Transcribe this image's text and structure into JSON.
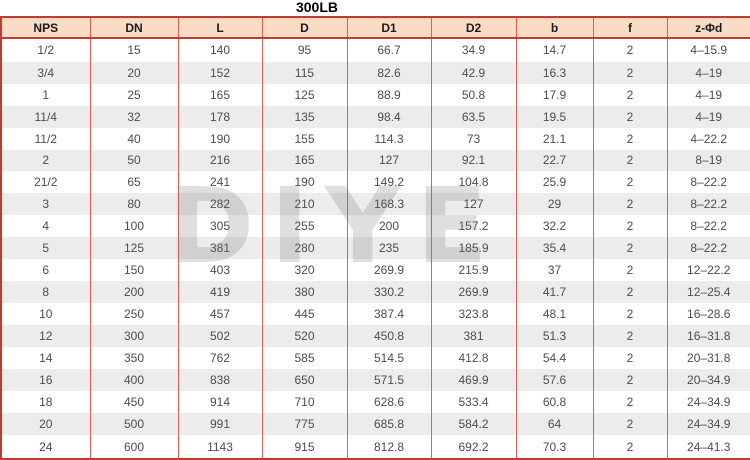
{
  "title": "300LB",
  "watermark": "DIYE",
  "colors": {
    "header_bg": "#f9dcc4",
    "border_red": "#dd6058",
    "border_dark_red": "#c23a30",
    "row_alt_bg": "#ececec",
    "cell_text": "#4d4d4d"
  },
  "table": {
    "columns": [
      "NPS",
      "DN",
      "L",
      "D",
      "D1",
      "D2",
      "b",
      "f",
      "z-Φd"
    ],
    "rows": [
      [
        "1/2",
        "15",
        "140",
        "95",
        "66.7",
        "34.9",
        "14.7",
        "2",
        "4–15.9"
      ],
      [
        "3/4",
        "20",
        "152",
        "115",
        "82.6",
        "42.9",
        "16.3",
        "2",
        "4–19"
      ],
      [
        "1",
        "25",
        "165",
        "125",
        "88.9",
        "50.8",
        "17.9",
        "2",
        "4–19"
      ],
      [
        "11/4",
        "32",
        "178",
        "135",
        "98.4",
        "63.5",
        "19.5",
        "2",
        "4–19"
      ],
      [
        "11/2",
        "40",
        "190",
        "155",
        "114.3",
        "73",
        "21.1",
        "2",
        "4–22.2"
      ],
      [
        "2",
        "50",
        "216",
        "165",
        "127",
        "92.1",
        "22.7",
        "2",
        "8–19"
      ],
      [
        "21/2",
        "65",
        "241",
        "190",
        "149.2",
        "104.8",
        "25.9",
        "2",
        "8–22.2"
      ],
      [
        "3",
        "80",
        "282",
        "210",
        "168.3",
        "127",
        "29",
        "2",
        "8–22.2"
      ],
      [
        "4",
        "100",
        "305",
        "255",
        "200",
        "157.2",
        "32.2",
        "2",
        "8–22.2"
      ],
      [
        "5",
        "125",
        "381",
        "280",
        "235",
        "185.9",
        "35.4",
        "2",
        "8–22.2"
      ],
      [
        "6",
        "150",
        "403",
        "320",
        "269.9",
        "215.9",
        "37",
        "2",
        "12–22.2"
      ],
      [
        "8",
        "200",
        "419",
        "380",
        "330.2",
        "269.9",
        "41.7",
        "2",
        "12–25.4"
      ],
      [
        "10",
        "250",
        "457",
        "445",
        "387.4",
        "323.8",
        "48.1",
        "2",
        "16–28.6"
      ],
      [
        "12",
        "300",
        "502",
        "520",
        "450.8",
        "381",
        "51.3",
        "2",
        "16–31.8"
      ],
      [
        "14",
        "350",
        "762",
        "585",
        "514.5",
        "412.8",
        "54.4",
        "2",
        "20–31.8"
      ],
      [
        "16",
        "400",
        "838",
        "650",
        "571.5",
        "469.9",
        "57.6",
        "2",
        "20–34.9"
      ],
      [
        "18",
        "450",
        "914",
        "710",
        "628.6",
        "533.4",
        "60.8",
        "2",
        "24–34.9"
      ],
      [
        "20",
        "500",
        "991",
        "775",
        "685.8",
        "584.2",
        "64",
        "2",
        "24–34.9"
      ],
      [
        "24",
        "600",
        "1143",
        "915",
        "812.8",
        "692.2",
        "70.3",
        "2",
        "24–41.3"
      ]
    ]
  }
}
